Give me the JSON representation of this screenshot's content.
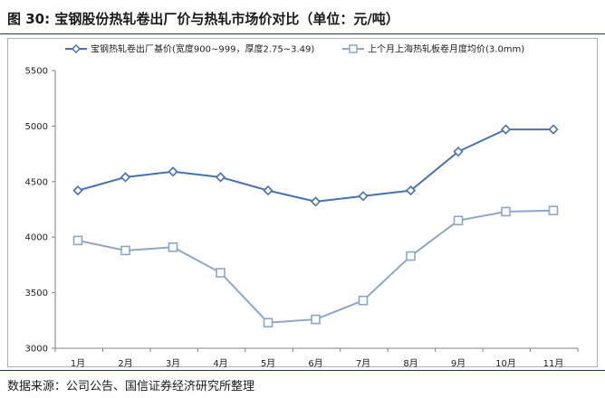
{
  "header": {
    "title": "图 30:  宝钢股份热轧卷出厂价与热轧市场价对比（单位：元/吨）"
  },
  "footer": {
    "source": "数据来源：公司公告、国信证券经济研究所整理"
  },
  "chart_data": {
    "type": "line",
    "categories": [
      "1月",
      "2月",
      "3月",
      "4月",
      "5月",
      "6月",
      "7月",
      "8月",
      "9月",
      "10月",
      "11月"
    ],
    "ylim": [
      3000,
      5500
    ],
    "yticks": [
      3000,
      3500,
      4000,
      4500,
      5000,
      5500
    ],
    "grid": false,
    "legend_position": "top",
    "series": [
      {
        "name": "宝钢热轧卷出厂基价(宽度900~999，厚度2.75~3.49)",
        "marker": "diamond",
        "color": "#4a72b0",
        "values": [
          4420,
          4540,
          4590,
          4540,
          4420,
          4320,
          4370,
          4420,
          4770,
          4970,
          4970
        ]
      },
      {
        "name": "上个月上海热轧板卷月度均价(3.0mm)",
        "marker": "square",
        "color": "#8ea7c8",
        "values": [
          3970,
          3880,
          3910,
          3680,
          3230,
          3260,
          3430,
          3830,
          4150,
          4230,
          4240
        ]
      }
    ]
  }
}
